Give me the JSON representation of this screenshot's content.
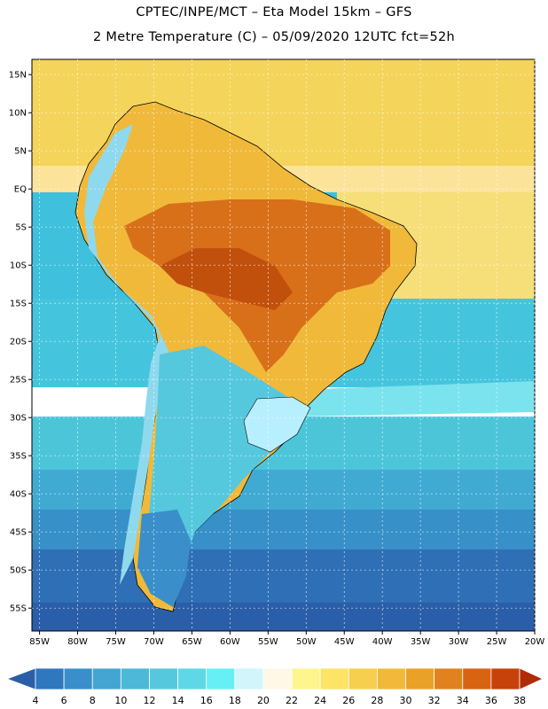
{
  "header": {
    "line1": "CPTEC/INPE/MCT –  Eta Model 15km – GFS",
    "line2": "2 Metre Temperature (C) – 05/09/2020 12UTC fct=52h"
  },
  "map": {
    "lat_labels": [
      "15N",
      "10N",
      "5N",
      "EQ",
      "5S",
      "10S",
      "15S",
      "20S",
      "25S",
      "30S",
      "35S",
      "40S",
      "45S",
      "50S",
      "55S"
    ],
    "lat_values": [
      15,
      10,
      5,
      0,
      -5,
      -10,
      -15,
      -20,
      -25,
      -30,
      -35,
      -40,
      -45,
      -50,
      -55
    ],
    "lon_labels": [
      "85W",
      "80W",
      "75W",
      "70W",
      "65W",
      "60W",
      "55W",
      "50W",
      "45W",
      "40W",
      "35W",
      "30W",
      "25W",
      "20W"
    ],
    "lon_values": [
      -85,
      -80,
      -75,
      -70,
      -65,
      -60,
      -55,
      -50,
      -45,
      -40,
      -35,
      -30,
      -25,
      -20
    ],
    "extent": {
      "lon_min": -86,
      "lon_max": -20,
      "lat_min": -58,
      "lat_max": 17
    }
  },
  "colorbar": {
    "units": "C",
    "labels": [
      "4",
      "6",
      "8",
      "10",
      "12",
      "14",
      "16",
      "18",
      "20",
      "22",
      "24",
      "26",
      "28",
      "30",
      "32",
      "34",
      "36",
      "38"
    ],
    "colors": [
      "#2a5ea8",
      "#2f78bd",
      "#3a8fca",
      "#45a5d2",
      "#4db8d8",
      "#55c8de",
      "#5ed8e6",
      "#66f0f5",
      "#d2f5fb",
      "#fff8e6",
      "#fff58f",
      "#fde366",
      "#f7cf4e",
      "#f0b93a",
      "#eaa128",
      "#e0831e",
      "#d86412",
      "#c7420a",
      "#b02c08"
    ]
  }
}
